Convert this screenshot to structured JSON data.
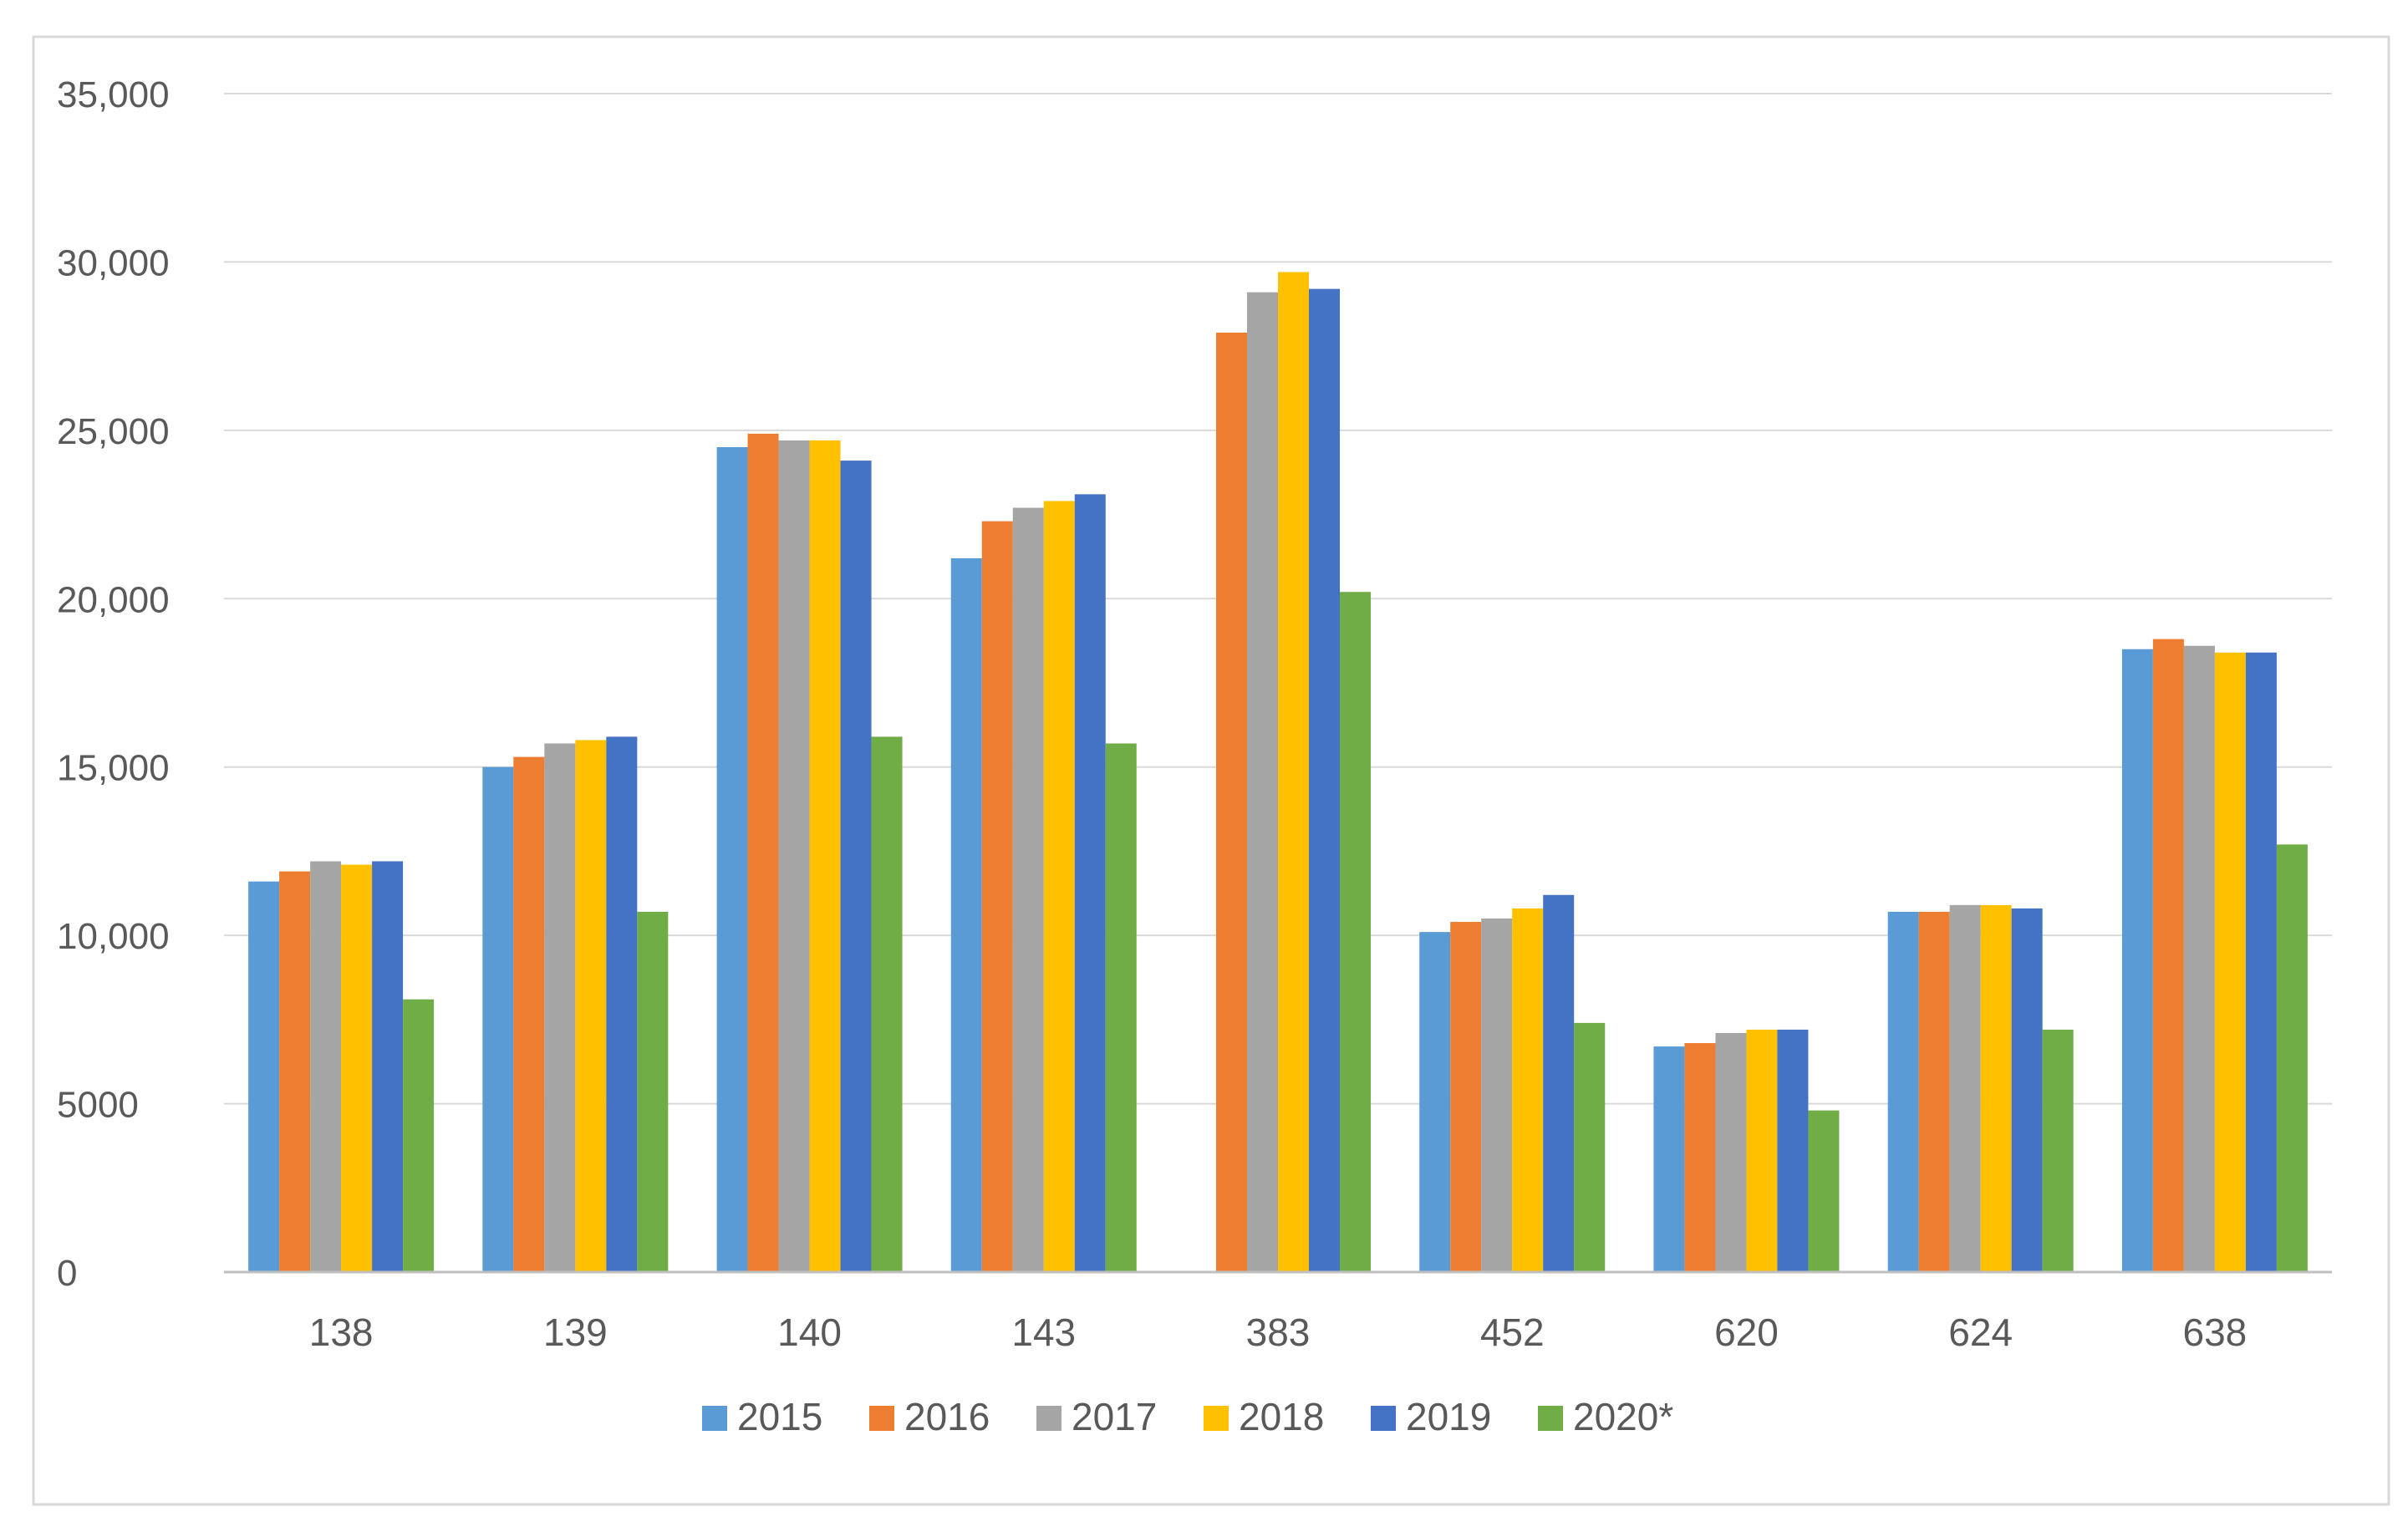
{
  "chart_data": {
    "type": "bar",
    "title": "",
    "xlabel": "",
    "ylabel": "",
    "categories": [
      "138",
      "139",
      "140",
      "143",
      "383",
      "452",
      "620",
      "624",
      "638"
    ],
    "ylim": [
      0,
      35000
    ],
    "yticks": [
      0,
      5000,
      10000,
      15000,
      20000,
      25000,
      30000,
      35000
    ],
    "ytick_labels": [
      "0",
      "5000",
      "10,000",
      "15,000",
      "20,000",
      "25,000",
      "30,000",
      "35,000"
    ],
    "grid": true,
    "legend_position": "bottom",
    "series": [
      {
        "name": "2015",
        "color": "#5B9BD5",
        "values": [
          11600,
          15000,
          24500,
          21200,
          null,
          10100,
          6700,
          10700,
          18500
        ]
      },
      {
        "name": "2016",
        "color": "#ED7D31",
        "values": [
          11900,
          15300,
          24900,
          22300,
          27900,
          10400,
          6800,
          10700,
          18800
        ]
      },
      {
        "name": "2017",
        "color": "#A5A5A5",
        "values": [
          12200,
          15700,
          24700,
          22700,
          29100,
          10500,
          7100,
          10900,
          18600
        ]
      },
      {
        "name": "2018",
        "color": "#FFC000",
        "values": [
          12100,
          15800,
          24700,
          22900,
          29700,
          10800,
          7200,
          10900,
          18400
        ]
      },
      {
        "name": "2019",
        "color": "#4472C4",
        "values": [
          12200,
          15900,
          24100,
          23100,
          29200,
          11200,
          7200,
          10800,
          18400
        ]
      },
      {
        "name": "2020*",
        "color": "#70AD47",
        "values": [
          8100,
          10700,
          15900,
          15700,
          20200,
          7400,
          4800,
          7200,
          12700
        ]
      }
    ]
  }
}
